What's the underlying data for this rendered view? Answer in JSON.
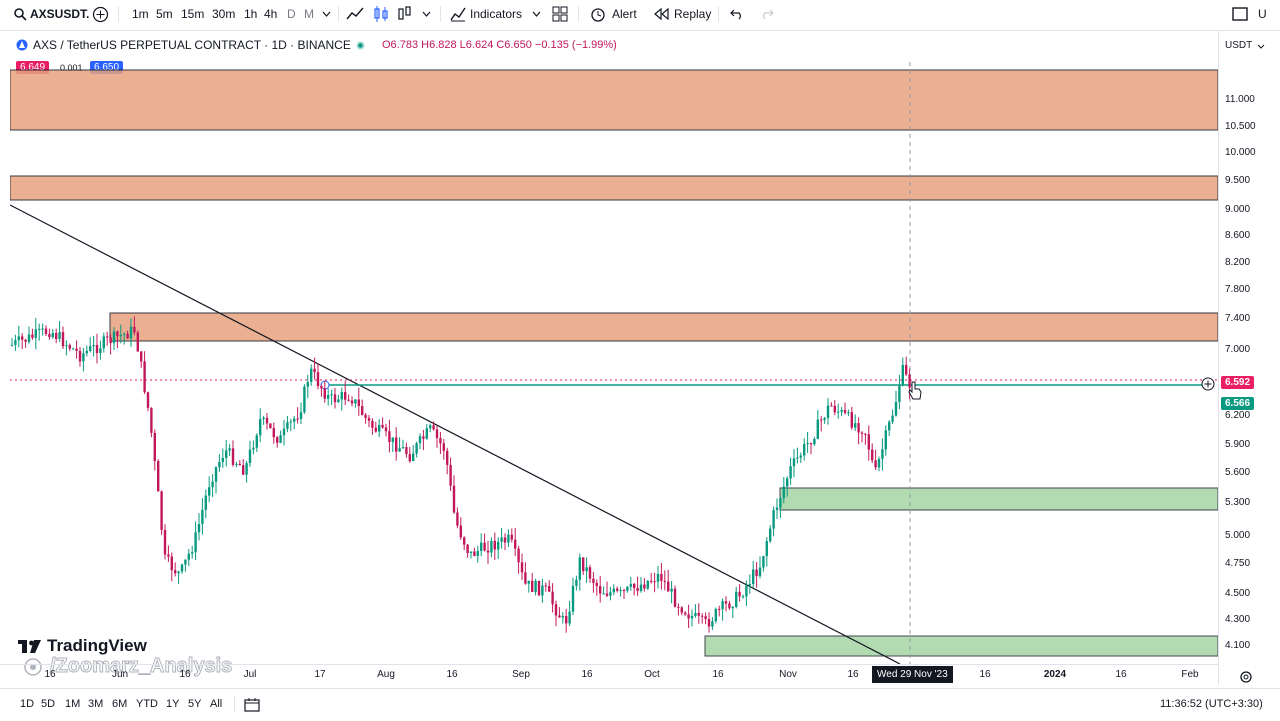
{
  "toolbar": {
    "symbol": "AXSUSDT.",
    "intervals": [
      "1m",
      "5m",
      "15m",
      "30m",
      "1h",
      "4h",
      "D",
      "M"
    ],
    "indicators_label": "Indicators",
    "alert_label": "Alert",
    "replay_label": "Replay",
    "right_label": "U"
  },
  "legend": {
    "title": "AXS / TetherUS PERPETUAL CONTRACT · 1D · BINANCE",
    "ohlc": "O6.783 H6.828 L6.624 C6.650 −0.135 (−1.99%)",
    "bid": "6.649",
    "spread": "0.001",
    "ask": "6.650"
  },
  "colors": {
    "up": "#089981",
    "down": "#c2185b",
    "resistance_zone": "#e8a37f",
    "support_zone": "#9fd3a0",
    "price_label": "#e91e63",
    "support_label": "#089981"
  },
  "price_axis": {
    "currency": "USDT",
    "ticks": [
      "11.000",
      "10.500",
      "10.000",
      "9.500",
      "9.000",
      "8.600",
      "8.200",
      "7.800",
      "7.400",
      "7.000",
      "6.200",
      "5.900",
      "5.600",
      "5.300",
      "5.000",
      "4.750",
      "4.500",
      "4.300",
      "4.100"
    ],
    "current_price": "6.592",
    "secondary_price": "6.566"
  },
  "time_axis": {
    "ticks": [
      "16",
      "Jun",
      "16",
      "Jul",
      "17",
      "Aug",
      "16",
      "Sep",
      "16",
      "Oct",
      "16",
      "Nov",
      "16",
      "16",
      "2024",
      "16",
      "Feb"
    ],
    "crosshair_label": "Wed 29 Nov '23"
  },
  "watermark": {
    "brand": "TradingView",
    "author": "/Zoomarz_Analysis"
  },
  "bottombar": {
    "ranges": [
      "1D",
      "5D",
      "1M",
      "3M",
      "6M",
      "YTD",
      "1Y",
      "5Y",
      "All"
    ],
    "clock": "11:36:52 (UTC+3:30)"
  }
}
